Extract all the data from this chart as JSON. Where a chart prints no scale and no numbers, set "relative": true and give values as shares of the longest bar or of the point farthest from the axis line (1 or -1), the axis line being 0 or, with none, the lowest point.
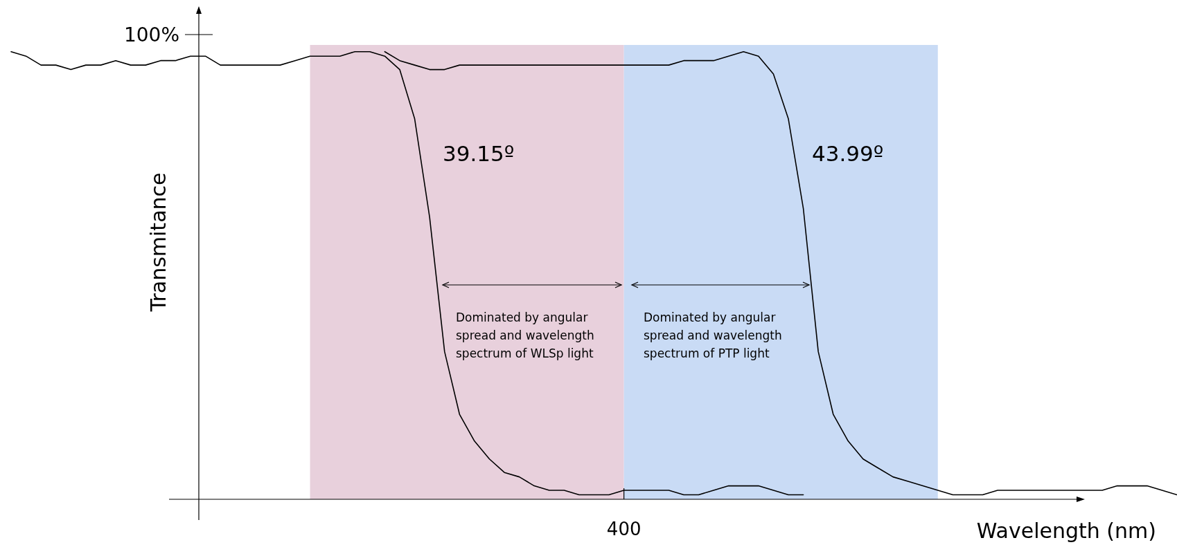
{
  "chart_data": {
    "type": "line",
    "relative": true,
    "xlabel": "Wavelength (nm)",
    "ylabel": "Transmitance",
    "marker": "none",
    "line_style": "solid",
    "categories": [
      null,
      null,
      null,
      null,
      null,
      null,
      null,
      null,
      null,
      null,
      null,
      null,
      null,
      null,
      null,
      null,
      null,
      null,
      null,
      null,
      null,
      null,
      null,
      null,
      null,
      null,
      null,
      null,
      null,
      null,
      null,
      null,
      null,
      null,
      null,
      null,
      null,
      null,
      null,
      null,
      null,
      null,
      null,
      null,
      null,
      null,
      null,
      null,
      null,
      null,
      null,
      null,
      null,
      null,
      null,
      null,
      null,
      null,
      null,
      null,
      null,
      null,
      null,
      null,
      null,
      null,
      null,
      null,
      null,
      null,
      null,
      null,
      null,
      null,
      null,
      null,
      null,
      null,
      null
    ],
    "series": [
      {
        "color": "#000000",
        "values": [
          1.0,
          0.99,
          0.97,
          0.97,
          0.96,
          0.97,
          0.97,
          0.98,
          0.97,
          0.97,
          0.98,
          0.98,
          0.99,
          0.99,
          0.97,
          0.97,
          0.97,
          0.97,
          0.97,
          0.98,
          0.99,
          0.99,
          0.99,
          1.0,
          1.0,
          0.99,
          0.96,
          0.85,
          0.63,
          0.33,
          0.19,
          0.13,
          0.09,
          0.06,
          0.05,
          0.03,
          0.02,
          0.02,
          0.01,
          0.01,
          0.01,
          0.02,
          0.02,
          0.02,
          0.02,
          0.01,
          0.01,
          0.02,
          0.03,
          0.03,
          0.03,
          0.02,
          0.01,
          0.01,
          null,
          null,
          null,
          null,
          null,
          null,
          null,
          null,
          null,
          null,
          null,
          null,
          null,
          null,
          null,
          null,
          null,
          null,
          null,
          null,
          null,
          null,
          null,
          null,
          null
        ]
      },
      {
        "color": "#000000",
        "values": [
          null,
          null,
          null,
          null,
          null,
          null,
          null,
          null,
          null,
          null,
          null,
          null,
          null,
          null,
          null,
          null,
          null,
          null,
          null,
          null,
          null,
          null,
          null,
          null,
          null,
          1.0,
          0.98,
          0.97,
          0.96,
          0.96,
          0.97,
          0.97,
          0.97,
          0.97,
          0.97,
          0.97,
          0.97,
          0.97,
          0.97,
          0.97,
          0.97,
          0.97,
          0.97,
          0.97,
          0.97,
          0.98,
          0.98,
          0.98,
          0.99,
          1.0,
          0.99,
          0.95,
          0.85,
          0.65,
          0.33,
          0.19,
          0.13,
          0.09,
          0.07,
          0.05,
          0.04,
          0.03,
          0.02,
          0.01,
          0.01,
          0.01,
          0.02,
          0.02,
          0.02,
          0.02,
          0.02,
          0.02,
          0.02,
          0.02,
          0.03,
          0.03,
          0.03,
          0.02,
          0.01
        ]
      }
    ],
    "annotations": [
      "100%",
      "39.15º",
      "43.99º",
      "Dominated by angular spread and wavelength spectrum of WLSp light",
      "Dominated by angular spread and wavelength spectrum of PTP light",
      "400"
    ]
  }
}
